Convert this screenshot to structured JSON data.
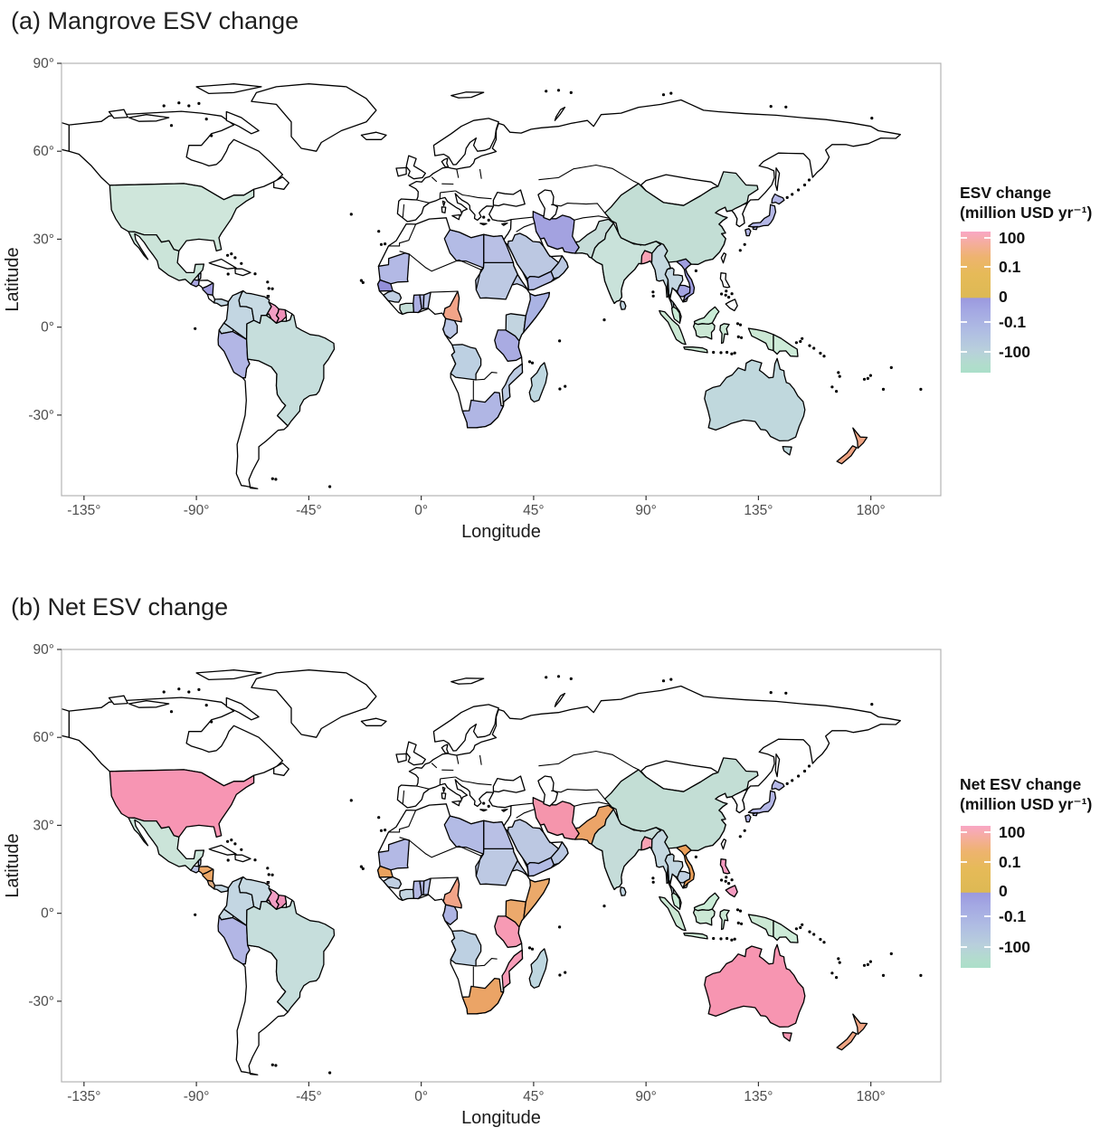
{
  "figure": {
    "background": "#ffffff"
  },
  "color_scale": {
    "orientation": "vertical",
    "gradient_stops": [
      [
        "0%",
        "#F9A7C5"
      ],
      [
        "8%",
        "#F5AD9E"
      ],
      [
        "18%",
        "#EEB36F"
      ],
      [
        "30%",
        "#E6BA58"
      ],
      [
        "46.8%",
        "#DDB954"
      ],
      [
        "47.2%",
        "#9B99DF"
      ],
      [
        "56%",
        "#A4A8E3"
      ],
      [
        "70%",
        "#AFBCE3"
      ],
      [
        "84%",
        "#B8CFDC"
      ],
      [
        "94%",
        "#B2DCCD"
      ],
      [
        "100%",
        "#ABDFC9"
      ]
    ],
    "tick_labels": [
      "100",
      "0.1",
      "0",
      "-0.1",
      "-100"
    ]
  },
  "chart_data": [
    {
      "type": "choropleth_map",
      "panel_label": "a",
      "title": "(a) Mangrove ESV change",
      "xlabel": "Longitude",
      "ylabel": "Latitude",
      "x_tick_labels": [
        "-135°",
        "-90°",
        "-45°",
        "0°",
        "45°",
        "90°",
        "135°",
        "180°"
      ],
      "y_tick_labels": [
        "90°",
        "60°",
        "30°",
        "0°",
        "-30°"
      ],
      "x_tick_lons": [
        -135,
        -90,
        -45,
        0,
        45,
        90,
        135,
        180
      ],
      "y_tick_lats": [
        90,
        60,
        30,
        0,
        -30
      ],
      "legend": {
        "title_line1": "ESV change",
        "title_line2": "(million USD yr⁻¹)",
        "tick_labels": [
          "100",
          "0.1",
          "0",
          "-0.1",
          "-100"
        ]
      },
      "country_colors": {
        "usa": "#cfe6db",
        "mexico": "#cbe4d9",
        "guatemala": "#a8a6e0",
        "belize": "#b7c5e3",
        "nicaragua": "#9f9cde",
        "panama": "#c2d5e1",
        "colombia": "#c3d6e2",
        "venezuela": "#c7dae3",
        "guyana": "#f29ec4",
        "suriname": "#ef90b8",
        "ecuador": "#c6d8e2",
        "peru": "#b2b6e5",
        "brazil": "#c6dedc",
        "trinidad": "#a9a8e1",
        "mauritania": "#b3b9e5",
        "senegal": "#928ed8",
        "guinea": "#c0cfe2",
        "cote_divoire": "#c5ded8",
        "ghana": "#abaee2",
        "togo": "#b0b5e3",
        "benin": "#b9c2e4",
        "cameroon": "#f2a488",
        "gabon": "#bac6e4",
        "angola": "#bdd0e2",
        "south_africa": "#b0b6e4",
        "mozambique": "#bccbe2",
        "tanzania": "#a9abe2",
        "kenya": "#c2d4e0",
        "somalia": "#aab3e3",
        "eritrea": "#bcc8e3",
        "sudan": "#bdc9e3",
        "egypt": "#b9c0e5",
        "libya": "#b3bbe5",
        "madagascar": "#bed7e0",
        "saudi_arabia": "#bcc8e2",
        "yemen": "#b2bbe4",
        "oman": "#bac8e2",
        "iran": "#a3a2e0",
        "pakistan": "#c6dcd8",
        "india": "#c9e2da",
        "sri_lanka": "#c2d5e1",
        "bangladesh": "#f8a2b4",
        "myanmar": "#c4d8e0",
        "thailand": "#c3d6e1",
        "cambodia": "#a4a4e0",
        "vietnam": "#a09ee0",
        "malaysia": "#c9ecd6",
        "indonesia": "#cbe8d4",
        "papua_new_guinea": "#cdebd8",
        "china": "#c3ded5",
        "japan": "#b4b7e6",
        "australia": "#c0d8dd",
        "tasmania": "#c0d8dd",
        "new_zealand": "#efa483"
      }
    },
    {
      "type": "choropleth_map",
      "panel_label": "b",
      "title": "(b) Net ESV change",
      "xlabel": "Longitude",
      "ylabel": "Latitude",
      "x_tick_labels": [
        "-135°",
        "-90°",
        "-45°",
        "0°",
        "45°",
        "90°",
        "135°",
        "180°"
      ],
      "y_tick_labels": [
        "90°",
        "60°",
        "30°",
        "0°",
        "-30°"
      ],
      "x_tick_lons": [
        -135,
        -90,
        -45,
        0,
        45,
        90,
        135,
        180
      ],
      "y_tick_lats": [
        90,
        60,
        30,
        0,
        -30
      ],
      "legend": {
        "title_line1": "Net ESV change",
        "title_line2": "(million USD yr⁻¹)",
        "tick_labels": [
          "100",
          "0.1",
          "0",
          "-0.1",
          "-100"
        ]
      },
      "country_colors": {
        "usa": "#f795b3",
        "mexico": "#cbe4d9",
        "guatemala": "#b9c3e4",
        "belize": "#b7c5e3",
        "honduras": "#eca768",
        "nicaragua": "#eda766",
        "costa_rica": "#dcab81",
        "panama": "#c2d5e1",
        "colombia": "#c3d6e2",
        "venezuela": "#c7dae3",
        "guyana": "#f29ec4",
        "suriname": "#ef90b8",
        "ecuador": "#c6d8e2",
        "peru": "#b2b6e5",
        "brazil": "#c6dedc",
        "trinidad": "#f4a0bd",
        "mauritania": "#b3b9e5",
        "senegal": "#eaa25e",
        "guinea": "#c0cfe2",
        "cote_divoire": "#c3d4e1",
        "ghana": "#b3b8e3",
        "togo": "#b0b5e3",
        "benin": "#b9c2e4",
        "cameroon": "#f2a488",
        "gabon": "#aeb4e3",
        "angola": "#bdd0e2",
        "south_africa": "#eba466",
        "mozambique": "#f79cb8",
        "tanzania": "#f79ab4",
        "kenya": "#eca96c",
        "somalia": "#eba96a",
        "eritrea": "#bcc8e3",
        "sudan": "#bdc9e3",
        "egypt": "#b9c0e5",
        "libya": "#b3bbe5",
        "madagascar": "#bed7e0",
        "saudi_arabia": "#bcc8e2",
        "yemen": "#b2bbe4",
        "oman": "#bac8e2",
        "iran": "#f595ac",
        "pakistan": "#eca468",
        "india": "#c5dcd9",
        "sri_lanka": "#c2d5e1",
        "bangladesh": "#f8a2b4",
        "myanmar": "#c4d8e0",
        "thailand": "#c3d6e1",
        "cambodia": "#bfcfe2",
        "vietnam": "#eb9f59",
        "malaysia": "#c9ecd6",
        "indonesia": "#cbe8d4",
        "papua_new_guinea": "#cdebd8",
        "philippines": "#f49bc0",
        "china": "#c3ded5",
        "japan": "#b4b7e6",
        "australia": "#f795b1",
        "tasmania": "#f795b1",
        "new_zealand": "#efa483"
      }
    }
  ]
}
